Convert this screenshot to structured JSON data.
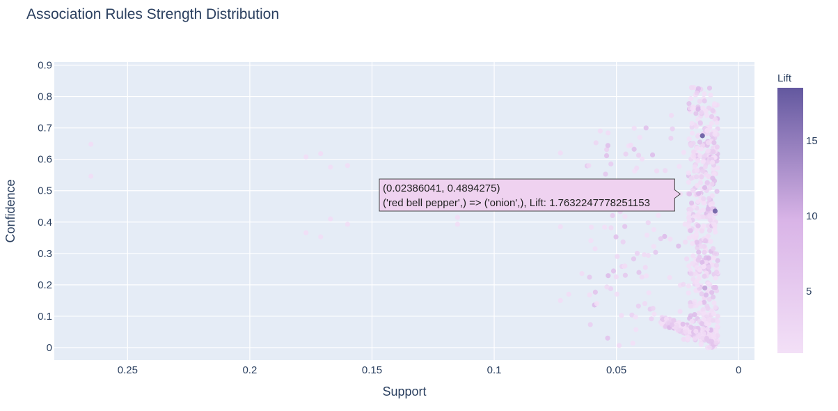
{
  "chart_data": {
    "type": "scatter",
    "title": "Association Rules Strength Distribution",
    "xlabel": "Support",
    "ylabel": "Confidence",
    "xlim": [
      0.28,
      -0.0065
    ],
    "x_reversed": true,
    "ylim": [
      -0.04,
      0.91
    ],
    "x_ticks": [
      0.25,
      0.2,
      0.15,
      0.1,
      0.05,
      0
    ],
    "x_tick_labels": [
      "0.25",
      "0.2",
      "0.15",
      "0.1",
      "0.05",
      "0"
    ],
    "y_ticks": [
      0,
      0.1,
      0.2,
      0.3,
      0.4,
      0.5,
      0.6,
      0.7,
      0.8,
      0.9
    ],
    "y_tick_labels": [
      "0",
      "0.1",
      "0.2",
      "0.3",
      "0.4",
      "0.5",
      "0.6",
      "0.7",
      "0.8",
      "0.9"
    ],
    "grid": true,
    "colorbar": {
      "title": "Lift",
      "min": 0.9,
      "max": 18.5,
      "ticks": [
        5,
        10,
        15
      ],
      "tick_labels": [
        "5",
        "10",
        "15"
      ],
      "color_low": "#f3e0f7",
      "color_high": "#63589f"
    },
    "points": [
      {
        "x": 0.265,
        "y": 0.648,
        "lift": 1.6
      },
      {
        "x": 0.265,
        "y": 0.546,
        "lift": 1.5
      },
      {
        "x": 0.177,
        "y": 0.608,
        "lift": 1.6
      },
      {
        "x": 0.171,
        "y": 0.618,
        "lift": 1.7
      },
      {
        "x": 0.167,
        "y": 0.575,
        "lift": 1.6
      },
      {
        "x": 0.16,
        "y": 0.58,
        "lift": 1.5
      },
      {
        "x": 0.177,
        "y": 0.366,
        "lift": 1.6
      },
      {
        "x": 0.171,
        "y": 0.353,
        "lift": 1.5
      },
      {
        "x": 0.167,
        "y": 0.41,
        "lift": 1.7
      },
      {
        "x": 0.16,
        "y": 0.393,
        "lift": 1.6
      },
      {
        "x": 0.115,
        "y": 0.415,
        "lift": 1.7
      },
      {
        "x": 0.115,
        "y": 0.393,
        "lift": 1.6
      },
      {
        "x": 0.0729,
        "y": 0.385,
        "lift": 1.6
      },
      {
        "x": 0.0729,
        "y": 0.62,
        "lift": 1.7
      },
      {
        "x": 0.0729,
        "y": 0.15,
        "lift": 1.5
      },
      {
        "x": 0.0695,
        "y": 0.17,
        "lift": 1.6
      },
      {
        "x": 0.0641,
        "y": 0.236,
        "lift": 1.8
      },
      {
        "x": 0.0613,
        "y": 0.58,
        "lift": 2.1
      },
      {
        "x": 0.0587,
        "y": 0.315,
        "lift": 1.6
      },
      {
        "x": 0.0566,
        "y": 0.69,
        "lift": 1.8
      },
      {
        "x": 0.0534,
        "y": 0.684,
        "lift": 1.7
      },
      {
        "x": 0.0465,
        "y": 0.26,
        "lift": 1.8
      },
      {
        "x": 0.0441,
        "y": 0.645,
        "lift": 1.7
      },
      {
        "x": 0.0417,
        "y": 0.572,
        "lift": 2.0
      },
      {
        "x": 0.0386,
        "y": 0.296,
        "lift": 1.9
      },
      {
        "x": 0.037,
        "y": 0.398,
        "lift": 3.1
      },
      {
        "x": 0.0335,
        "y": 0.563,
        "lift": 2.4
      },
      {
        "x": 0.0275,
        "y": 0.74,
        "lift": 1.9
      },
      {
        "x": 0.0238,
        "y": 0.4894,
        "lift": 1.76
      },
      {
        "x": 0.0148,
        "y": 0.675,
        "lift": 18.5
      },
      {
        "x": 0.0096,
        "y": 0.435,
        "lift": 18.0
      },
      {
        "x": 0.0138,
        "y": 0.19,
        "lift": 11.5
      },
      {
        "x": 0.0122,
        "y": 0.285,
        "lift": 9.0
      }
    ],
    "generated_clusters": {
      "seed": 7,
      "count": 760,
      "x_min": 0.0085,
      "x_max": 0.062,
      "lift_min": 1.0,
      "lift_max": 9.0
    },
    "hover": {
      "line1": "(0.02386041, 0.4894275)",
      "line2": "('red bell pepper',) => ('onion',), Lift: 1.7632247778251153",
      "point_x": 0.02386041,
      "point_y": 0.4894275,
      "bg_color": "#efd2f0",
      "border_color": "#444444"
    },
    "colors": {
      "plot_bg": "#e5ecf6",
      "grid": "#ffffff",
      "text": "#2a3f5f"
    }
  }
}
